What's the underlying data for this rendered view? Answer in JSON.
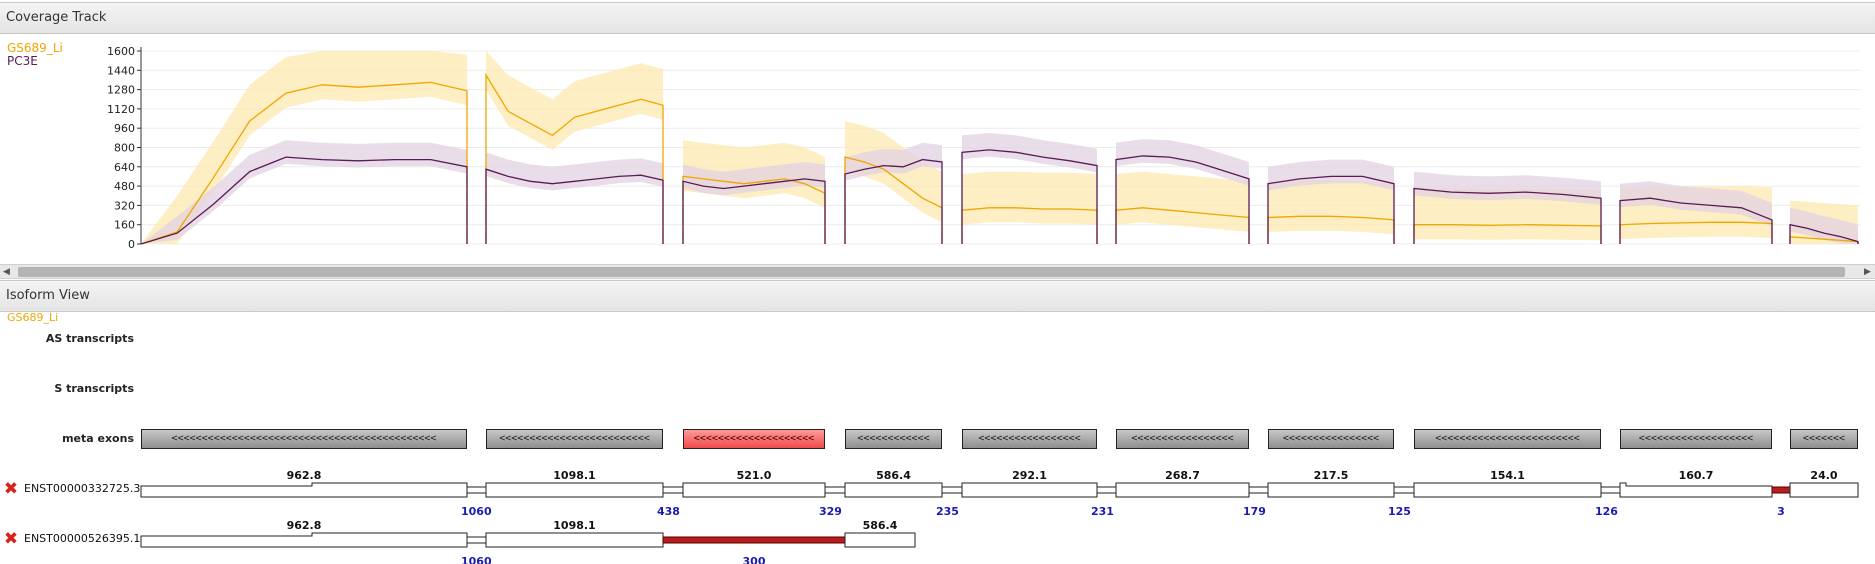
{
  "coverage_track": {
    "title": "Coverage Track",
    "samples": [
      {
        "name": "GS689_Li",
        "color": "#f0a500",
        "band_color": "#fde8b0"
      },
      {
        "name": "PC3E",
        "color": "#5a1a55",
        "band_color": "#e2d2e2"
      }
    ]
  },
  "isoform_view": {
    "title": "Isoform View",
    "sample_label": "GS689_Li",
    "row_labels": {
      "as": "AS transcripts",
      "s": "S transcripts",
      "meta": "meta exons"
    },
    "meta_exons": [
      {
        "arrows": "<<<<<<<<<<<<<<<<<<<<<<<<<<<<<<<<<<<<<<<<<<<<",
        "highlighted": false
      },
      {
        "arrows": "<<<<<<<<<<<<<<<<<<<<<<<<<",
        "highlighted": false
      },
      {
        "arrows": "<<<<<<<<<<<<<<<<<<<<",
        "highlighted": true
      },
      {
        "arrows": "<<<<<<<<<<<<",
        "highlighted": false
      },
      {
        "arrows": "<<<<<<<<<<<<<<<<<",
        "highlighted": false
      },
      {
        "arrows": "<<<<<<<<<<<<<<<<<",
        "highlighted": false
      },
      {
        "arrows": "<<<<<<<<<<<<<<<<",
        "highlighted": false
      },
      {
        "arrows": "<<<<<<<<<<<<<<<<<<<<<<<<",
        "highlighted": false
      },
      {
        "arrows": "<<<<<<<<<<<<<<<<<<<",
        "highlighted": false
      },
      {
        "arrows": "<<<<<<<",
        "highlighted": false
      }
    ],
    "transcripts": [
      {
        "name": "ENST00000332725.3",
        "exon_values": [
          "962.8",
          "1098.1",
          "521.0",
          "586.4",
          "292.1",
          "268.7",
          "217.5",
          "154.1",
          "160.7",
          "24.0"
        ],
        "junction_counts": [
          "1060",
          "438",
          "329",
          "235",
          "231",
          "179",
          "125",
          "126",
          "3"
        ]
      },
      {
        "name": "ENST00000526395.1",
        "exon_values": [
          "962.8",
          "1098.1",
          "586.4"
        ],
        "junction_counts": [
          "1060",
          "300"
        ]
      }
    ]
  },
  "chart_data": {
    "type": "area",
    "title": "Coverage Track",
    "xlabel": "",
    "ylabel": "",
    "ylim": [
      0,
      1600
    ],
    "yticks": [
      0,
      160,
      320,
      480,
      640,
      800,
      960,
      1120,
      1280,
      1440,
      1600
    ],
    "grid": true,
    "legend_position": "top-left",
    "segments": [
      {
        "GS689_Li": [
          0,
          100,
          550,
          1020,
          1250,
          1320,
          1300,
          1320,
          1340,
          1270
        ],
        "PC3E": [
          0,
          90,
          330,
          600,
          720,
          700,
          690,
          700,
          700,
          640
        ]
      },
      {
        "GS689_Li": [
          1400,
          1100,
          1000,
          900,
          1050,
          1100,
          1150,
          1200,
          1150
        ],
        "PC3E": [
          620,
          560,
          520,
          500,
          520,
          540,
          560,
          570,
          530
        ]
      },
      {
        "GS689_Li": [
          560,
          540,
          520,
          500,
          520,
          540,
          500,
          420
        ],
        "PC3E": [
          520,
          480,
          460,
          480,
          500,
          520,
          540,
          520
        ]
      },
      {
        "GS689_Li": [
          720,
          680,
          620,
          500,
          380,
          300
        ],
        "PC3E": [
          580,
          620,
          650,
          640,
          700,
          680
        ]
      },
      {
        "GS689_Li": [
          280,
          300,
          300,
          290,
          290,
          280
        ],
        "PC3E": [
          760,
          780,
          760,
          720,
          690,
          650
        ]
      },
      {
        "GS689_Li": [
          280,
          300,
          280,
          260,
          240,
          220
        ],
        "PC3E": [
          700,
          730,
          720,
          680,
          610,
          540
        ]
      },
      {
        "GS689_Li": [
          220,
          230,
          230,
          220,
          200
        ],
        "PC3E": [
          500,
          540,
          560,
          560,
          500
        ]
      },
      {
        "GS689_Li": [
          160,
          160,
          155,
          160,
          155,
          150
        ],
        "PC3E": [
          460,
          430,
          420,
          430,
          410,
          380
        ]
      },
      {
        "GS689_Li": [
          160,
          170,
          175,
          180,
          180,
          170
        ],
        "PC3E": [
          360,
          380,
          340,
          320,
          300,
          200
        ]
      },
      {
        "GS689_Li": [
          60,
          50,
          40,
          30,
          20
        ],
        "PC3E": [
          160,
          130,
          90,
          60,
          20
        ]
      }
    ]
  }
}
